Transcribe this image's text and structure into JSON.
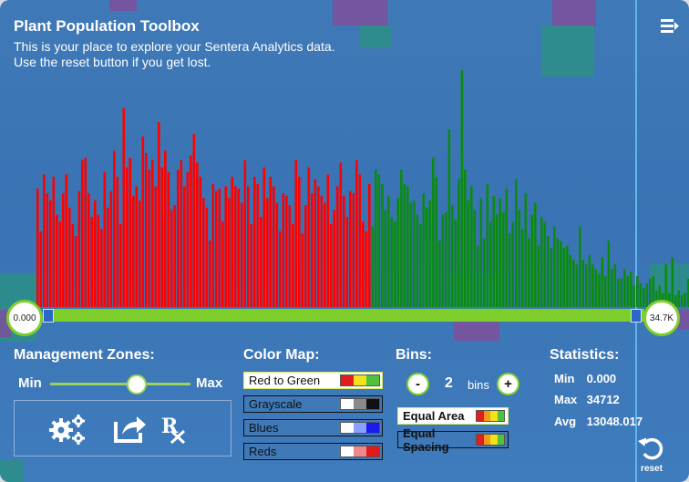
{
  "header": {
    "title": "Plant Population Toolbox",
    "subtitle_line1": "This is your place to explore your Sentera Analytics data.",
    "subtitle_line2": "Use the reset button if you get lost."
  },
  "icons": {
    "menu": "menu-icon",
    "settings": "gears-icon",
    "export": "share-icon",
    "prescription": "rx-icon",
    "reset": "reset-icon"
  },
  "histogram": {
    "range_min_label": "0.000",
    "range_max_label": "34.7K",
    "colors": {
      "low": "#ff0000",
      "high": "#0b8a12",
      "track": "#7fcf2c",
      "handle": "#2a67c6"
    },
    "red_bars": [
      0.5,
      0.32,
      0.56,
      0.48,
      0.45,
      0.55,
      0.39,
      0.36,
      0.48,
      0.56,
      0.42,
      0.35,
      0.3,
      0.49,
      0.62,
      0.63,
      0.48,
      0.38,
      0.45,
      0.39,
      0.33,
      0.57,
      0.42,
      0.49,
      0.66,
      0.55,
      0.35,
      0.84,
      0.59,
      0.63,
      0.47,
      0.51,
      0.45,
      0.72,
      0.65,
      0.58,
      0.62,
      0.51,
      0.78,
      0.59,
      0.66,
      0.57,
      0.41,
      0.43,
      0.58,
      0.62,
      0.51,
      0.57,
      0.64,
      0.73,
      0.61,
      0.55,
      0.46,
      0.42,
      0.28,
      0.52,
      0.49,
      0.5,
      0.36,
      0.51,
      0.46,
      0.55,
      0.51,
      0.5,
      0.44,
      0.62,
      0.51,
      0.35,
      0.55,
      0.52,
      0.38,
      0.59,
      0.46,
      0.55,
      0.51,
      0.44,
      0.32,
      0.48,
      0.47,
      0.43,
      0.35,
      0.62,
      0.55,
      0.31,
      0.43,
      0.59,
      0.48,
      0.54,
      0.51,
      0.47,
      0.44,
      0.56,
      0.35,
      0.41,
      0.51,
      0.61,
      0.47,
      0.38,
      0.49,
      0.48,
      0.62,
      0.56,
      0.36,
      0.32,
      0.52
    ],
    "green_bars": [
      0.34,
      0.58,
      0.56,
      0.52,
      0.41,
      0.47,
      0.38,
      0.36,
      0.46,
      0.58,
      0.52,
      0.51,
      0.44,
      0.45,
      0.39,
      0.35,
      0.48,
      0.42,
      0.45,
      0.63,
      0.55,
      0.28,
      0.39,
      0.4,
      0.75,
      0.43,
      0.37,
      0.54,
      1.0,
      0.58,
      0.45,
      0.51,
      0.41,
      0.26,
      0.46,
      0.29,
      0.52,
      0.36,
      0.47,
      0.39,
      0.46,
      0.4,
      0.5,
      0.31,
      0.36,
      0.54,
      0.41,
      0.33,
      0.48,
      0.29,
      0.39,
      0.44,
      0.26,
      0.38,
      0.36,
      0.3,
      0.25,
      0.34,
      0.29,
      0.28,
      0.25,
      0.26,
      0.22,
      0.2,
      0.18,
      0.34,
      0.2,
      0.18,
      0.22,
      0.18,
      0.16,
      0.14,
      0.21,
      0.13,
      0.28,
      0.16,
      0.18,
      0.12,
      0.12,
      0.16,
      0.13,
      0.15,
      0.09,
      0.13,
      0.1,
      0.08,
      0.1,
      0.12,
      0.13,
      0.07,
      0.09,
      0.06,
      0.18,
      0.06,
      0.21,
      0.05,
      0.07,
      0.05,
      0.06,
      0.12,
      0.04,
      0.07,
      0.09,
      0.06,
      0.27,
      0.05,
      0.22,
      0.05,
      0.04,
      0.09,
      0.03,
      0.1,
      0.24,
      0.05,
      0.04,
      0.12,
      0.22,
      0.05,
      0.04,
      0.22,
      0.04,
      0.03,
      0.2,
      0.12,
      0.22,
      0.18,
      0.06,
      0.05,
      0.31,
      0.04,
      0.03,
      0.04,
      0.06,
      0.07,
      0.03,
      0.06,
      0.05,
      0.06,
      0.1,
      0.03,
      0.04,
      0.04,
      0.05,
      0.06,
      0.04,
      0.07,
      0.08,
      0.06,
      0.11,
      0.09,
      0.08,
      0.05,
      0.04,
      0.04
    ]
  },
  "management_zones": {
    "title": "Management Zones:",
    "min_label": "Min",
    "max_label": "Max",
    "slider_value": 0.55
  },
  "color_map": {
    "title": "Color Map:",
    "options": [
      {
        "label": "Red to Green",
        "selected": true,
        "swatch": [
          "#e21d1d",
          "#f2e21c",
          "#4fc23a"
        ]
      },
      {
        "label": "Grayscale",
        "selected": false,
        "swatch": [
          "#ffffff",
          "#8a8a8a",
          "#111111"
        ]
      },
      {
        "label": "Blues",
        "selected": false,
        "swatch": [
          "#ffffff",
          "#8aa0ff",
          "#1a1af0"
        ]
      },
      {
        "label": "Reds",
        "selected": false,
        "swatch": [
          "#ffffff",
          "#f08a8a",
          "#e01a1a"
        ]
      }
    ]
  },
  "bins": {
    "title": "Bins:",
    "minus_label": "-",
    "plus_label": "+",
    "count": "2",
    "unit": "bins",
    "modes": [
      {
        "label": "Equal Area",
        "selected": true,
        "swatch": [
          "#e21d1d",
          "#f29a1c",
          "#f2e21c",
          "#4fc23a"
        ]
      },
      {
        "label": "Equal Spacing",
        "selected": false,
        "swatch": [
          "#e21d1d",
          "#f29a1c",
          "#f2e21c",
          "#4fc23a"
        ]
      }
    ]
  },
  "statistics": {
    "title": "Statistics:",
    "rows": [
      {
        "key": "Min",
        "value": "0.000"
      },
      {
        "key": "Max",
        "value": "34712"
      },
      {
        "key": "Avg",
        "value": "13048.017"
      }
    ]
  },
  "reset": {
    "label": "reset"
  }
}
